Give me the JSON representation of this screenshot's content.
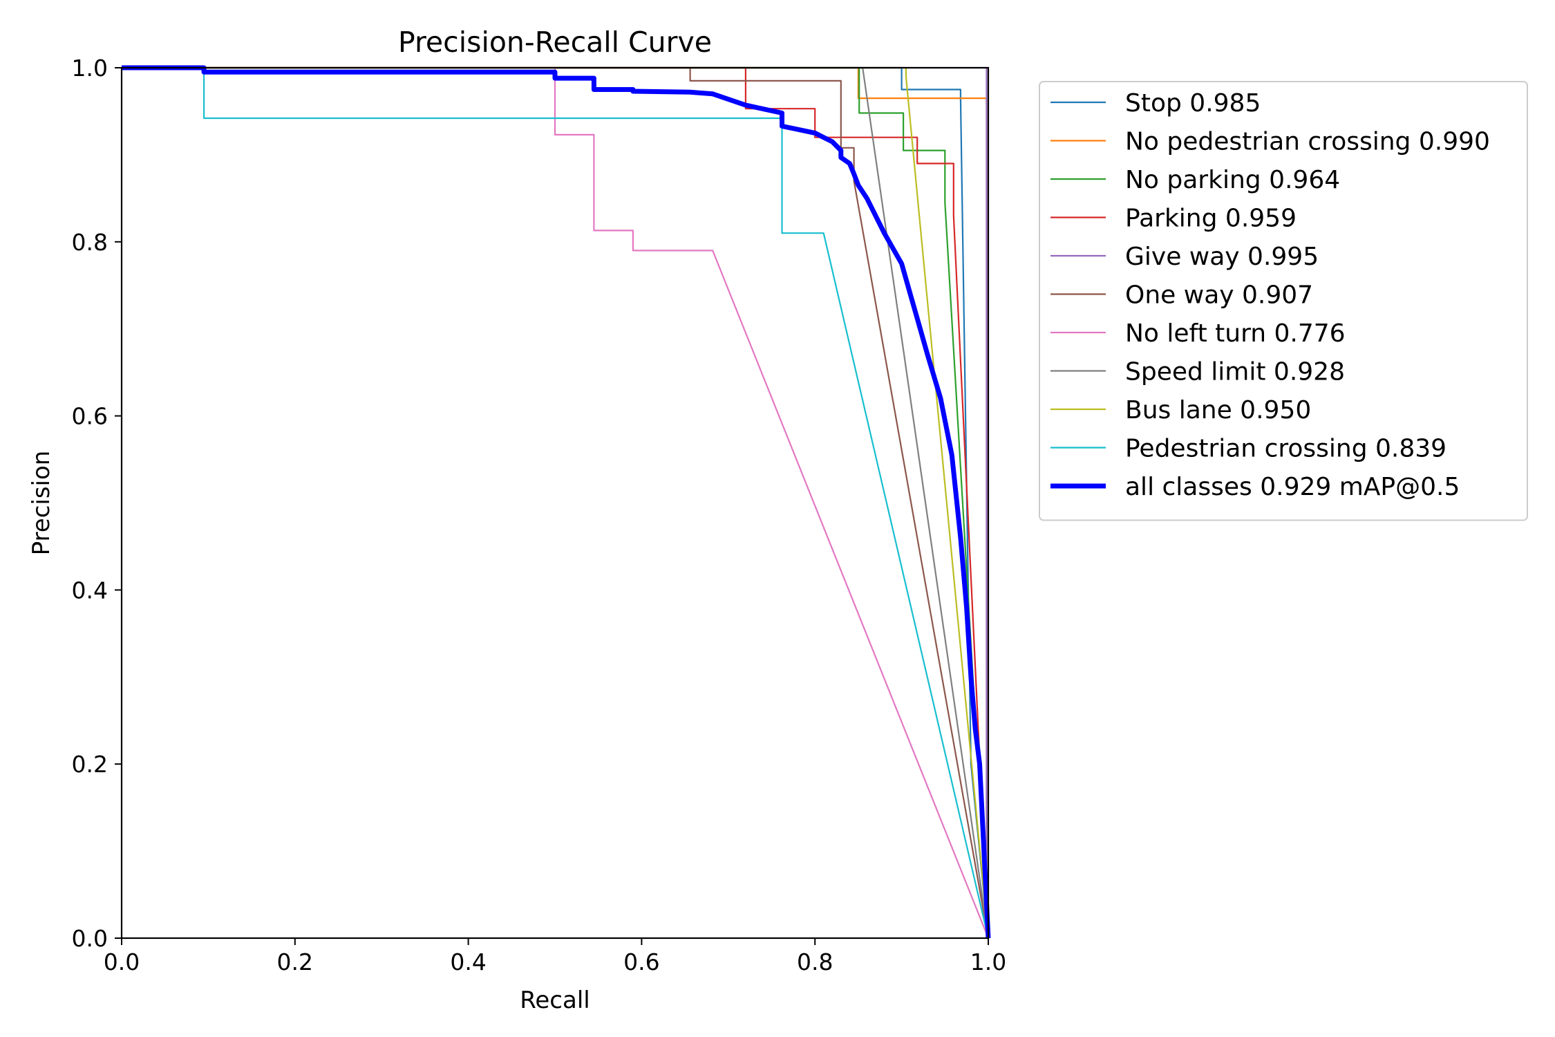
{
  "chart_data": {
    "type": "line",
    "title": "Precision-Recall Curve",
    "xlabel": "Recall",
    "ylabel": "Precision",
    "xlim": [
      0,
      1
    ],
    "ylim": [
      0,
      1
    ],
    "xticks": [
      "0.0",
      "0.2",
      "0.4",
      "0.6",
      "0.8",
      "1.0"
    ],
    "yticks": [
      "0.0",
      "0.2",
      "0.4",
      "0.6",
      "0.8",
      "1.0"
    ],
    "grid": false,
    "legend_position": "outside-right-top",
    "series": [
      {
        "name": "Stop 0.985",
        "color": "#1f77b4",
        "width": 2.2,
        "x": [
          0,
          0.9,
          0.9,
          0.968,
          0.968,
          0.98,
          1.0
        ],
        "y": [
          1,
          1,
          0.975,
          0.975,
          0.965,
          0.2,
          0
        ]
      },
      {
        "name": "No pedestrian crossing 0.990",
        "color": "#ff7f0e",
        "width": 2.2,
        "x": [
          0,
          0.85,
          0.85,
          0.998,
          0.998
        ],
        "y": [
          1,
          1,
          0.965,
          0.965,
          0
        ]
      },
      {
        "name": "No parking 0.964",
        "color": "#2ca02c",
        "width": 2.2,
        "x": [
          0,
          0.851,
          0.851,
          0.902,
          0.902,
          0.95,
          0.95,
          1.0
        ],
        "y": [
          1,
          1,
          0.948,
          0.948,
          0.905,
          0.905,
          0.845,
          0
        ]
      },
      {
        "name": "Parking 0.959",
        "color": "#d62728",
        "width": 2.2,
        "x": [
          0,
          0.72,
          0.72,
          0.8,
          0.8,
          0.918,
          0.918,
          0.96,
          0.96,
          1.0
        ],
        "y": [
          1,
          1,
          0.953,
          0.953,
          0.92,
          0.92,
          0.89,
          0.89,
          0.83,
          0
        ]
      },
      {
        "name": "Give way 0.995",
        "color": "#9467bd",
        "width": 2.2,
        "x": [
          0,
          0.998,
          0.998
        ],
        "y": [
          1,
          1,
          0
        ]
      },
      {
        "name": "One way 0.907",
        "color": "#8c564b",
        "width": 2.2,
        "x": [
          0,
          0.656,
          0.656,
          0.83,
          0.83,
          0.845,
          0.845,
          1.0
        ],
        "y": [
          1,
          1,
          0.985,
          0.985,
          0.908,
          0.908,
          0.87,
          0
        ]
      },
      {
        "name": "No left turn 0.776",
        "color": "#e377c2",
        "width": 2.2,
        "x": [
          0,
          0.5,
          0.5,
          0.545,
          0.545,
          0.59,
          0.59,
          0.682,
          1.0
        ],
        "y": [
          1,
          1,
          0.923,
          0.923,
          0.813,
          0.813,
          0.79,
          0.79,
          0
        ]
      },
      {
        "name": "Speed limit 0.928",
        "color": "#7f7f7f",
        "width": 2.2,
        "x": [
          0,
          0.855,
          1.0
        ],
        "y": [
          1,
          1,
          0
        ]
      },
      {
        "name": "Bus lane 0.950",
        "color": "#bcbd22",
        "width": 2.2,
        "x": [
          0,
          0.905,
          0.905,
          1.0
        ],
        "y": [
          1,
          1,
          0.99,
          0
        ]
      },
      {
        "name": "Pedestrian crossing 0.839",
        "color": "#17becf",
        "width": 2.2,
        "x": [
          0,
          0.095,
          0.095,
          0.762,
          0.762,
          0.81,
          1.0
        ],
        "y": [
          1,
          1,
          0.942,
          0.942,
          0.81,
          0.81,
          0
        ]
      },
      {
        "name": "all classes 0.929 mAP@0.5",
        "color": "#0000ff",
        "width": 7,
        "x": [
          0,
          0.095,
          0.095,
          0.5,
          0.5,
          0.545,
          0.545,
          0.59,
          0.59,
          0.656,
          0.682,
          0.72,
          0.762,
          0.762,
          0.8,
          0.81,
          0.82,
          0.83,
          0.83,
          0.84,
          0.845,
          0.85,
          0.86,
          0.88,
          0.9,
          0.91,
          0.92,
          0.93,
          0.945,
          0.958,
          0.968,
          0.975,
          0.98,
          0.985,
          0.99,
          1.0
        ],
        "y": [
          1,
          1,
          0.995,
          0.995,
          0.988,
          0.988,
          0.975,
          0.975,
          0.973,
          0.972,
          0.97,
          0.957,
          0.948,
          0.933,
          0.925,
          0.92,
          0.915,
          0.905,
          0.897,
          0.89,
          0.878,
          0.865,
          0.85,
          0.81,
          0.775,
          0.74,
          0.705,
          0.67,
          0.62,
          0.555,
          0.46,
          0.38,
          0.3,
          0.24,
          0.2,
          0
        ]
      }
    ]
  }
}
